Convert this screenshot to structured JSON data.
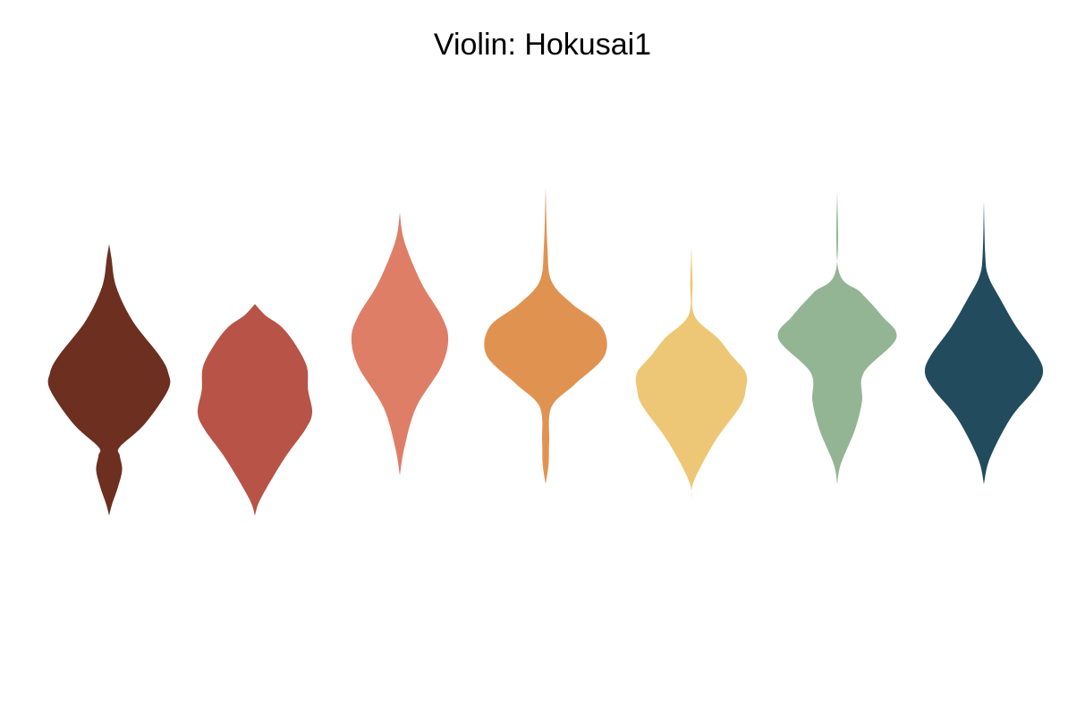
{
  "chart_data": {
    "type": "violin",
    "title": "Violin: Hokusai1",
    "xlabel": "",
    "ylabel": "",
    "axes_visible": false,
    "grid": false,
    "legend": "none",
    "palette": [
      "#6d2f20",
      "#b75347",
      "#df7e66",
      "#e09351",
      "#edc775",
      "#94b594",
      "#224b5e"
    ],
    "ylim": [
      -3.4,
      3.4
    ],
    "series": [
      {
        "color": "#6d2f20",
        "range": [
          -2.5,
          2.25
        ],
        "density": [
          [
            -2.5,
            0
          ],
          [
            -2.3,
            0.05
          ],
          [
            -2.0,
            0.15
          ],
          [
            -1.7,
            0.22
          ],
          [
            -1.45,
            0.18
          ],
          [
            -1.3,
            0.18
          ],
          [
            -0.9,
            0.6
          ],
          [
            -0.3,
            1.0
          ],
          [
            0.0,
            1.0
          ],
          [
            0.3,
            0.85
          ],
          [
            0.9,
            0.4
          ],
          [
            1.5,
            0.12
          ],
          [
            2.0,
            0.04
          ],
          [
            2.25,
            0
          ]
        ]
      },
      {
        "color": "#b75347",
        "range": [
          -2.5,
          1.2
        ],
        "density": [
          [
            -2.5,
            0
          ],
          [
            -2.2,
            0.1
          ],
          [
            -1.5,
            0.5
          ],
          [
            -1.0,
            0.85
          ],
          [
            -0.7,
            0.97
          ],
          [
            -0.3,
            0.9
          ],
          [
            0.1,
            0.88
          ],
          [
            0.5,
            0.68
          ],
          [
            0.8,
            0.45
          ],
          [
            1.0,
            0.18
          ],
          [
            1.2,
            0
          ]
        ]
      },
      {
        "color": "#df7e66",
        "range": [
          -1.8,
          2.8
        ],
        "density": [
          [
            -1.8,
            0
          ],
          [
            -1.3,
            0.08
          ],
          [
            -0.6,
            0.28
          ],
          [
            0.1,
            0.7
          ],
          [
            0.6,
            0.82
          ],
          [
            1.0,
            0.7
          ],
          [
            1.5,
            0.4
          ],
          [
            2.0,
            0.18
          ],
          [
            2.4,
            0.05
          ],
          [
            2.8,
            0
          ]
        ]
      },
      {
        "color": "#e09351",
        "range": [
          -1.95,
          3.25
        ],
        "density": [
          [
            -1.95,
            0
          ],
          [
            -1.6,
            0.05
          ],
          [
            -1.2,
            0.06
          ],
          [
            -0.6,
            0.1
          ],
          [
            -0.2,
            0.5
          ],
          [
            0.3,
            1.0
          ],
          [
            0.8,
            0.95
          ],
          [
            1.2,
            0.45
          ],
          [
            1.6,
            0.1
          ],
          [
            2.2,
            0.03
          ],
          [
            3.25,
            0
          ]
        ]
      },
      {
        "color": "#edc775",
        "range": [
          -2.25,
          2.2
        ],
        "density": [
          [
            -2.25,
            0
          ],
          [
            -1.9,
            0.04
          ],
          [
            -1.2,
            0.4
          ],
          [
            -0.6,
            0.82
          ],
          [
            -0.3,
            0.92
          ],
          [
            0.0,
            0.92
          ],
          [
            0.3,
            0.68
          ],
          [
            0.6,
            0.45
          ],
          [
            1.0,
            0.05
          ],
          [
            1.6,
            0.02
          ],
          [
            2.2,
            0
          ]
        ]
      },
      {
        "color": "#94b594",
        "range": [
          -1.95,
          3.25
        ],
        "density": [
          [
            -1.95,
            0
          ],
          [
            -1.6,
            0.06
          ],
          [
            -1.0,
            0.3
          ],
          [
            -0.5,
            0.42
          ],
          [
            0.0,
            0.45
          ],
          [
            0.6,
            1.0
          ],
          [
            1.0,
            0.75
          ],
          [
            1.4,
            0.4
          ],
          [
            1.8,
            0.02
          ],
          [
            3.25,
            0
          ]
        ]
      },
      {
        "color": "#224b5e",
        "range": [
          -1.95,
          3.0
        ],
        "density": [
          [
            -1.95,
            0
          ],
          [
            -1.5,
            0.1
          ],
          [
            -0.8,
            0.45
          ],
          [
            -0.3,
            0.85
          ],
          [
            0.0,
            1.0
          ],
          [
            0.3,
            0.9
          ],
          [
            0.8,
            0.55
          ],
          [
            1.3,
            0.27
          ],
          [
            1.7,
            0.07
          ],
          [
            2.1,
            0.02
          ],
          [
            3.0,
            0
          ]
        ]
      }
    ]
  }
}
